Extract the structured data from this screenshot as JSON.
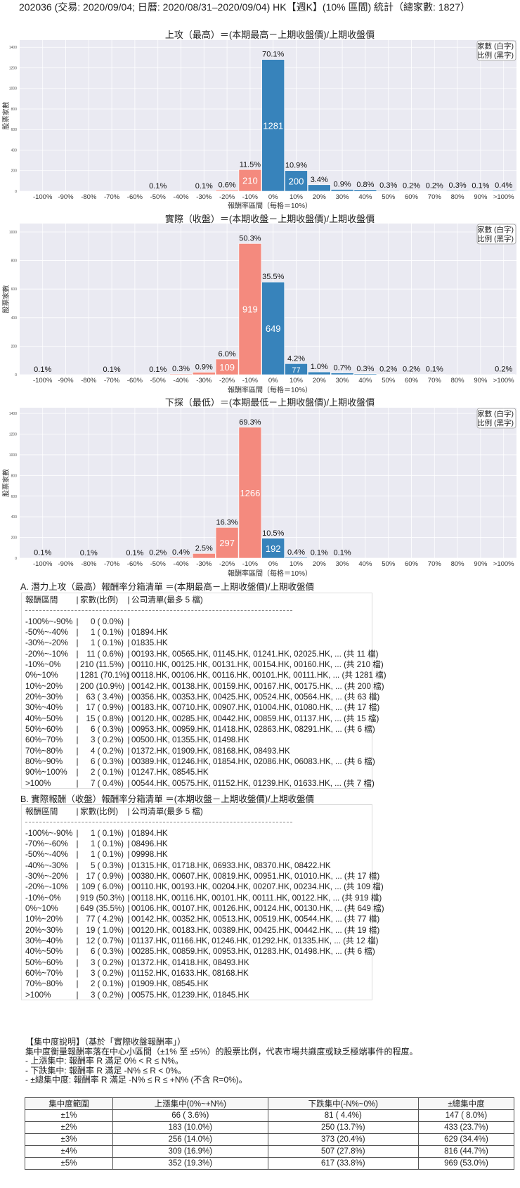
{
  "page_title": "202036 (交易: 2020/09/04; 日曆: 2020/08/31–2020/09/04) HK【週K】(10% 區間) 統計（總家數: 1827）",
  "colors": {
    "negative": "#f48a7e",
    "positive": "#3783bb",
    "plot_bg": "#eaeaf2",
    "grid": "#ffffff"
  },
  "chart_data": [
    {
      "type": "bar",
      "title": "上攻（最高）＝(本期最高－上期收盤價)/上期收盤價",
      "xlabel": "報酬率區間（每格＝10%）",
      "ylabel": "股票家數",
      "legend": [
        "家數 (白字)",
        "比例 (黑字)"
      ],
      "legend_position": "top-right",
      "grid": true,
      "ylim": [
        0,
        1470
      ],
      "yticks": [
        0,
        200,
        400,
        600,
        800,
        1000,
        1200,
        1400
      ],
      "categories": [
        "-100%",
        "-90%",
        "-80%",
        "-70%",
        "-60%",
        "-50%",
        "-40%",
        "-30%",
        "-20%",
        "-10%",
        "0%",
        "10%",
        "20%",
        "30%",
        "40%",
        "50%",
        "60%",
        "70%",
        "80%",
        "90%",
        ">100%"
      ],
      "values": [
        0,
        0,
        0,
        0,
        0,
        1,
        0,
        1,
        11,
        210,
        1281,
        200,
        63,
        17,
        15,
        6,
        3,
        4,
        6,
        2,
        7
      ],
      "percent_labels": [
        "",
        "",
        "",
        "",
        "",
        "0.1%",
        "",
        "0.1%",
        "0.6%",
        "11.5%",
        "70.1%",
        "10.9%",
        "3.4%",
        "0.9%",
        "0.8%",
        "0.3%",
        "0.2%",
        "0.2%",
        "0.3%",
        "0.1%",
        "0.4%"
      ]
    },
    {
      "type": "bar",
      "title": "實際（收盤）＝(本期收盤－上期收盤價)/上期收盤價",
      "xlabel": "報酬率區間（每格＝10%）",
      "ylabel": "股票家數",
      "legend": [
        "家數 (白字)",
        "比例 (黑字)"
      ],
      "legend_position": "top-right",
      "grid": true,
      "ylim": [
        0,
        1059
      ],
      "yticks": [
        0,
        200,
        400,
        600,
        800,
        1000
      ],
      "categories": [
        "-100%",
        "-90%",
        "-80%",
        "-70%",
        "-60%",
        "-50%",
        "-40%",
        "-30%",
        "-20%",
        "-10%",
        "0%",
        "10%",
        "20%",
        "30%",
        "40%",
        "50%",
        "60%",
        "70%",
        "80%",
        "90%",
        ">100%"
      ],
      "values": [
        1,
        0,
        0,
        1,
        0,
        1,
        5,
        17,
        109,
        919,
        649,
        77,
        19,
        12,
        6,
        3,
        3,
        2,
        0,
        0,
        3
      ],
      "percent_labels": [
        "0.1%",
        "",
        "",
        "0.1%",
        "",
        "0.1%",
        "0.3%",
        "0.9%",
        "6.0%",
        "50.3%",
        "35.5%",
        "4.2%",
        "1.0%",
        "0.7%",
        "0.3%",
        "0.2%",
        "0.2%",
        "0.1%",
        "",
        "",
        "0.2%"
      ]
    },
    {
      "type": "bar",
      "title": "下探（最低）＝(本期最低－上期收盤價)/上期收盤價",
      "xlabel": "報酬率區間（每格＝10%）",
      "ylabel": "股票家數",
      "legend": [
        "家數 (白字)",
        "比例 (黑字)"
      ],
      "legend_position": "top-right",
      "grid": true,
      "ylim": [
        0,
        1455
      ],
      "yticks": [
        0,
        200,
        400,
        600,
        800,
        1000,
        1200,
        1400
      ],
      "categories": [
        "-100%",
        "-90%",
        "-80%",
        "-70%",
        "-60%",
        "-50%",
        "-40%",
        "-30%",
        "-20%",
        "-10%",
        "0%",
        "10%",
        "20%",
        "30%",
        "40%",
        "50%",
        "60%",
        "70%",
        "80%",
        "90%",
        ">100%"
      ],
      "values": [
        2,
        0,
        1,
        0,
        1,
        4,
        7,
        45,
        297,
        1266,
        192,
        8,
        2,
        2,
        0,
        0,
        0,
        0,
        0,
        0,
        0
      ],
      "percent_labels": [
        "0.1%",
        "",
        "0.1%",
        "",
        "0.1%",
        "0.2%",
        "0.4%",
        "2.5%",
        "16.3%",
        "69.3%",
        "10.5%",
        "0.4%",
        "0.1%",
        "0.1%",
        "",
        "",
        "",
        "",
        "",
        "",
        ""
      ]
    }
  ],
  "section_a": {
    "title": "A. 潛力上攻（最高）報酬率分箱清單 ＝(本期最高－上期收盤價)/上期收盤價",
    "header": {
      "range": "報酬區間",
      "count": "家數(比例)",
      "list": "公司清單(最多 5 檔)"
    },
    "rows": [
      {
        "range": "-100%~-90%",
        "count": "0 ( 0.0%)",
        "list": ""
      },
      {
        "range": "-50%~-40%",
        "count": "1 ( 0.1%)",
        "list": "01894.HK"
      },
      {
        "range": "-30%~-20%",
        "count": "1 ( 0.1%)",
        "list": "01835.HK"
      },
      {
        "range": "-20%~-10%",
        "count": "11 ( 0.6%)",
        "list": "00193.HK, 00565.HK, 01145.HK, 01241.HK, 02025.HK, ... (共 11 檔)"
      },
      {
        "range": "-10%~0%",
        "count": "210 (11.5%)",
        "list": "00110.HK, 00125.HK, 00131.HK, 00154.HK, 00160.HK, ... (共 210 檔)"
      },
      {
        "range": "0%~10%",
        "count": "1281 (70.1%)",
        "list": "00118.HK, 00106.HK, 00116.HK, 00101.HK, 00111.HK, ... (共 1281 檔)"
      },
      {
        "range": "10%~20%",
        "count": "200 (10.9%)",
        "list": "00142.HK, 00138.HK, 00159.HK, 00167.HK, 00175.HK, ... (共 200 檔)"
      },
      {
        "range": "20%~30%",
        "count": "63 ( 3.4%)",
        "list": "00356.HK, 00353.HK, 00425.HK, 00524.HK, 00564.HK, ... (共 63 檔)"
      },
      {
        "range": "30%~40%",
        "count": "17 ( 0.9%)",
        "list": "00183.HK, 00710.HK, 00907.HK, 01004.HK, 01080.HK, ... (共 17 檔)"
      },
      {
        "range": "40%~50%",
        "count": "15 ( 0.8%)",
        "list": "00120.HK, 00285.HK, 00442.HK, 00859.HK, 01137.HK, ... (共 15 檔)"
      },
      {
        "range": "50%~60%",
        "count": "6 ( 0.3%)",
        "list": "00953.HK, 00959.HK, 01418.HK, 02863.HK, 08291.HK, ... (共 6 檔)"
      },
      {
        "range": "60%~70%",
        "count": "3 ( 0.2%)",
        "list": "00500.HK, 01355.HK, 01498.HK"
      },
      {
        "range": "70%~80%",
        "count": "4 ( 0.2%)",
        "list": "01372.HK, 01909.HK, 08168.HK, 08493.HK"
      },
      {
        "range": "80%~90%",
        "count": "6 ( 0.3%)",
        "list": "00389.HK, 01246.HK, 01854.HK, 02086.HK, 06083.HK, ... (共 6 檔)"
      },
      {
        "range": "90%~100%",
        "count": "2 ( 0.1%)",
        "list": "01247.HK, 08545.HK"
      },
      {
        "range": ">100%",
        "count": "7 ( 0.4%)",
        "list": "00544.HK, 00575.HK, 01152.HK, 01239.HK, 01633.HK, ... (共 7 檔)"
      }
    ]
  },
  "section_b": {
    "title": "B. 實際報酬（收盤）報酬率分箱清單 ＝(本期收盤－上期收盤價)/上期收盤價",
    "header": {
      "range": "報酬區間",
      "count": "家數(比例)",
      "list": "公司清單(最多 5 檔)"
    },
    "rows": [
      {
        "range": "-100%~-90%",
        "count": "1 ( 0.1%)",
        "list": "01894.HK"
      },
      {
        "range": "-70%~-60%",
        "count": "1 ( 0.1%)",
        "list": "08496.HK"
      },
      {
        "range": "-50%~-40%",
        "count": "1 ( 0.1%)",
        "list": "09998.HK"
      },
      {
        "range": "-40%~-30%",
        "count": "5 ( 0.3%)",
        "list": "01315.HK, 01718.HK, 06933.HK, 08370.HK, 08422.HK"
      },
      {
        "range": "-30%~-20%",
        "count": "17 ( 0.9%)",
        "list": "00380.HK, 00607.HK, 00819.HK, 00951.HK, 01010.HK, ... (共 17 檔)"
      },
      {
        "range": "-20%~-10%",
        "count": "109 ( 6.0%)",
        "list": "00110.HK, 00193.HK, 00204.HK, 00207.HK, 00234.HK, ... (共 109 檔)"
      },
      {
        "range": "-10%~0%",
        "count": "919 (50.3%)",
        "list": "00118.HK, 00116.HK, 00101.HK, 00111.HK, 00122.HK, ... (共 919 檔)"
      },
      {
        "range": "0%~10%",
        "count": "649 (35.5%)",
        "list": "00106.HK, 00107.HK, 00126.HK, 00124.HK, 00130.HK, ... (共 649 檔)"
      },
      {
        "range": "10%~20%",
        "count": "77 ( 4.2%)",
        "list": "00142.HK, 00352.HK, 00513.HK, 00519.HK, 00544.HK, ... (共 77 檔)"
      },
      {
        "range": "20%~30%",
        "count": "19 ( 1.0%)",
        "list": "00120.HK, 00183.HK, 00389.HK, 00425.HK, 00442.HK, ... (共 19 檔)"
      },
      {
        "range": "30%~40%",
        "count": "12 ( 0.7%)",
        "list": "01137.HK, 01166.HK, 01246.HK, 01292.HK, 01335.HK, ... (共 12 檔)"
      },
      {
        "range": "40%~50%",
        "count": "6 ( 0.3%)",
        "list": "00285.HK, 00859.HK, 00953.HK, 01283.HK, 01498.HK, ... (共 6 檔)"
      },
      {
        "range": "50%~60%",
        "count": "3 ( 0.2%)",
        "list": "01372.HK, 01418.HK, 08493.HK"
      },
      {
        "range": "60%~70%",
        "count": "3 ( 0.2%)",
        "list": "01152.HK, 01633.HK, 08168.HK"
      },
      {
        "range": "70%~80%",
        "count": "2 ( 0.1%)",
        "list": "01909.HK, 08545.HK"
      },
      {
        "range": ">100%",
        "count": "3 ( 0.2%)",
        "list": "00575.HK, 01239.HK, 01845.HK"
      }
    ]
  },
  "concentration": {
    "heading": "【集中度說明】（基於「實際收盤報酬率」）",
    "description": "集中度衡量報酬率落在中心小區間（±1% 至 ±5%）的股票比例，代表市場共識度或缺乏極端事件的程度。",
    "bullets": [
      "- 上漲集中: 報酬率 R 滿足 0% < R ≤ N%。",
      "- 下跌集中: 報酬率 R 滿足 -N% ≤ R < 0%。",
      "- ±總集中度: 報酬率 R 滿足 -N% ≤ R ≤ +N% (不含 R=0%)。"
    ],
    "table": {
      "headers": [
        "集中度範圍",
        "上漲集中(0%~+N%)",
        "下跌集中(-N%~0%)",
        "±總集中度"
      ],
      "rows": [
        [
          "±1%",
          "66 ( 3.6%)",
          "81 ( 4.4%)",
          "147 ( 8.0%)"
        ],
        [
          "±2%",
          "183 (10.0%)",
          "250 (13.7%)",
          "433 (23.7%)"
        ],
        [
          "±3%",
          "256 (14.0%)",
          "373 (20.4%)",
          "629 (34.4%)"
        ],
        [
          "±4%",
          "309 (16.9%)",
          "507 (27.8%)",
          "816 (44.7%)"
        ],
        [
          "±5%",
          "352 (19.3%)",
          "617 (33.8%)",
          "969 (53.0%)"
        ]
      ]
    }
  }
}
